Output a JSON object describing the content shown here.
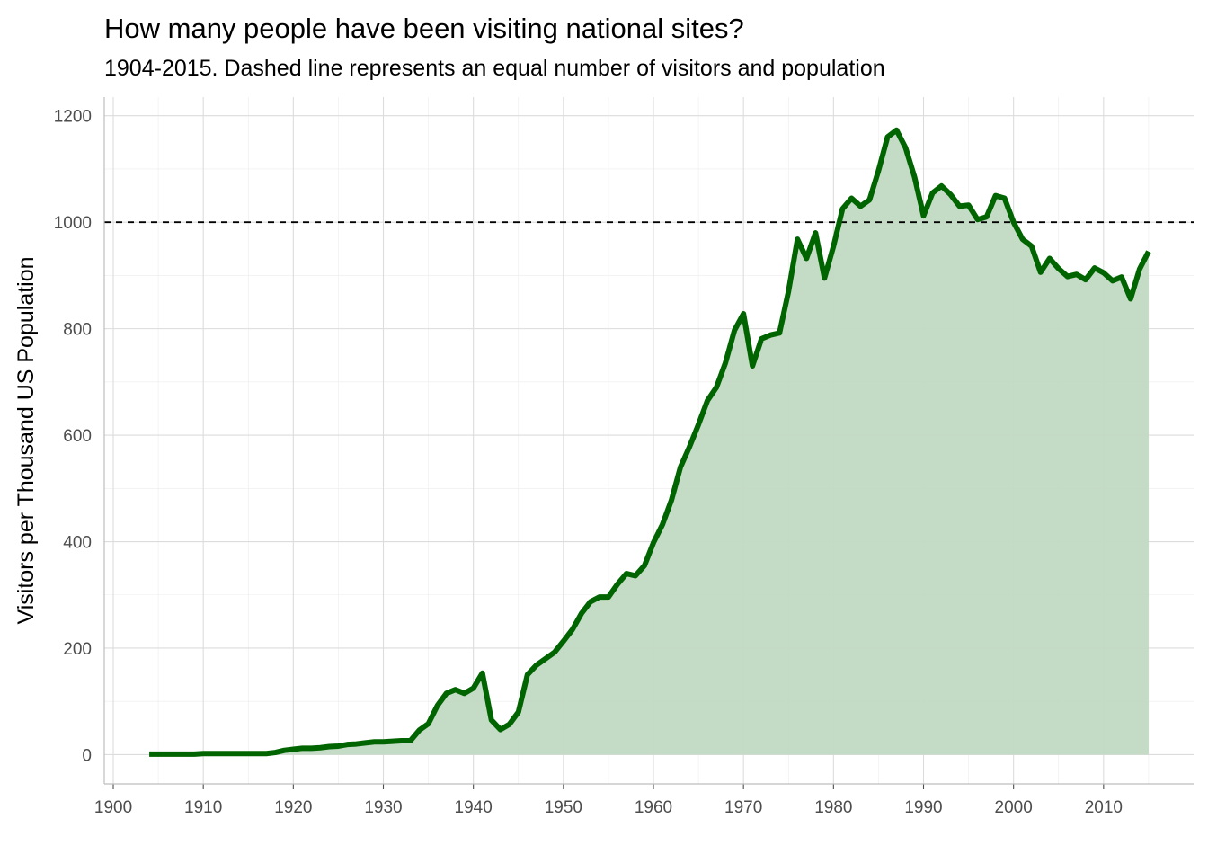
{
  "chart_data": {
    "type": "area",
    "title": "How many people have been visiting national sites?",
    "subtitle": "1904-2015. Dashed line represents an equal number of visitors and population",
    "xlabel": "",
    "ylabel": "Visitors per Thousand US Population",
    "xlim": [
      1899,
      2020
    ],
    "ylim": [
      -55,
      1235
    ],
    "x_ticks": [
      1900,
      1910,
      1920,
      1930,
      1940,
      1950,
      1960,
      1970,
      1980,
      1990,
      2000,
      2010
    ],
    "x_tick_labels": [
      "1900",
      "1910",
      "1920",
      "1930",
      "1940",
      "1950",
      "1960",
      "1970",
      "1980",
      "1990",
      "2000",
      "2010"
    ],
    "y_ticks": [
      0,
      200,
      400,
      600,
      800,
      1000,
      1200
    ],
    "y_tick_labels": [
      "0",
      "200",
      "400",
      "600",
      "800",
      "1000",
      "1200"
    ],
    "grid": true,
    "reference_line": {
      "y": 1000,
      "style": "dashed",
      "color": "#000000"
    },
    "colors": {
      "line": "#006400",
      "fill": "#c1d9c2"
    },
    "series": [
      {
        "x": [
          1904,
          1905,
          1906,
          1907,
          1908,
          1909,
          1910,
          1911,
          1912,
          1913,
          1914,
          1915,
          1916,
          1917,
          1918,
          1919,
          1920,
          1921,
          1922,
          1923,
          1924,
          1925,
          1926,
          1927,
          1928,
          1929,
          1930,
          1931,
          1932,
          1933,
          1934,
          1935,
          1936,
          1937,
          1938,
          1939,
          1940,
          1941,
          1942,
          1943,
          1944,
          1945,
          1946,
          1947,
          1948,
          1949,
          1950,
          1951,
          1952,
          1953,
          1954,
          1955,
          1956,
          1957,
          1958,
          1959,
          1960,
          1961,
          1962,
          1963,
          1964,
          1965,
          1966,
          1967,
          1968,
          1969,
          1970,
          1971,
          1972,
          1973,
          1974,
          1975,
          1976,
          1977,
          1978,
          1979,
          1980,
          1981,
          1982,
          1983,
          1984,
          1985,
          1986,
          1987,
          1988,
          1989,
          1990,
          1991,
          1992,
          1993,
          1994,
          1995,
          1996,
          1997,
          1998,
          1999,
          2000,
          2001,
          2002,
          2003,
          2004,
          2005,
          2006,
          2007,
          2008,
          2009,
          2010,
          2011,
          2012,
          2013,
          2014,
          2015
        ],
        "values": [
          1,
          1,
          1,
          1,
          1,
          1,
          2,
          2,
          2,
          2,
          2,
          2,
          2,
          2,
          4,
          8,
          10,
          12,
          12,
          13,
          15,
          16,
          19,
          20,
          22,
          24,
          24,
          25,
          26,
          26,
          46,
          58,
          92,
          115,
          122,
          115,
          125,
          153,
          65,
          47,
          57,
          80,
          150,
          168,
          180,
          192,
          213,
          235,
          265,
          287,
          296,
          296,
          320,
          340,
          336,
          355,
          398,
          432,
          478,
          540,
          578,
          620,
          665,
          690,
          736,
          797,
          828,
          730,
          781,
          788,
          792,
          870,
          968,
          932,
          980,
          895,
          955,
          1025,
          1045,
          1030,
          1042,
          1097,
          1160,
          1173,
          1140,
          1085,
          1012,
          1055,
          1068,
          1052,
          1030,
          1032,
          1005,
          1010,
          1050,
          1045,
          1000,
          968,
          955,
          906,
          932,
          913,
          898,
          902,
          892,
          914,
          905,
          890,
          897,
          856,
          912,
          945
        ]
      }
    ]
  }
}
